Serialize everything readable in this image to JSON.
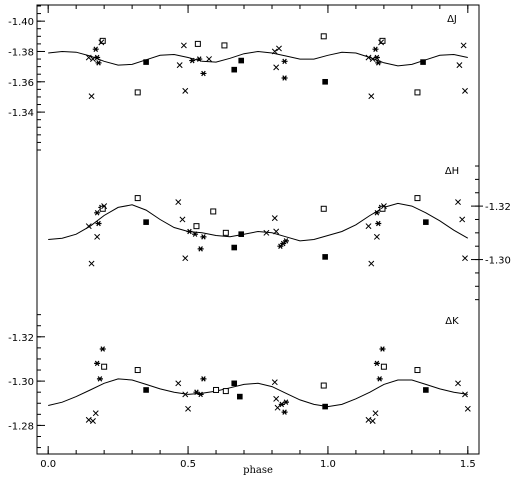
{
  "chart_data": {
    "type": "scatter",
    "xlabel": "phase",
    "x_ticks": [
      "0.0",
      "0.5",
      "1.0",
      "1.5"
    ],
    "xlim": [
      -0.04,
      1.54
    ],
    "marker_legend": {
      "cross": "x symbol",
      "star": "asterisk symbol",
      "open_square": "open square",
      "filled_square": "filled square"
    },
    "panels": [
      {
        "label": "ΔJ",
        "axis_side": "left",
        "ylim": [
          -1.41,
          -1.315
        ],
        "y_inverted": true,
        "y_ticks": [
          "-1.40",
          "-1.38",
          "-1.36",
          "-1.34"
        ],
        "y_tick_values": [
          -1.4,
          -1.38,
          -1.36,
          -1.34
        ],
        "model_curve": {
          "phase": [
            0.0,
            0.05,
            0.1,
            0.15,
            0.2,
            0.25,
            0.3,
            0.35,
            0.4,
            0.45,
            0.5,
            0.55,
            0.6,
            0.65,
            0.7,
            0.75,
            0.8,
            0.85,
            0.9,
            0.95,
            1.0,
            1.05,
            1.1,
            1.15,
            1.2,
            1.25,
            1.3,
            1.35,
            1.4,
            1.45,
            1.5
          ],
          "value": [
            -1.379,
            -1.38,
            -1.3795,
            -1.377,
            -1.3735,
            -1.371,
            -1.3715,
            -1.3745,
            -1.3775,
            -1.378,
            -1.376,
            -1.3735,
            -1.373,
            -1.3755,
            -1.3785,
            -1.38,
            -1.379,
            -1.377,
            -1.375,
            -1.375,
            -1.3775,
            -1.3795,
            -1.379,
            -1.376,
            -1.3725,
            -1.3705,
            -1.3715,
            -1.3745,
            -1.3775,
            -1.378,
            -1.376
          ]
        },
        "points": [
          {
            "marker": "cross",
            "x": 0.145,
            "y": -1.376
          },
          {
            "marker": "cross",
            "x": 0.16,
            "y": -1.375
          },
          {
            "marker": "cross",
            "x": 0.155,
            "y": -1.3505
          },
          {
            "marker": "star",
            "x": 0.175,
            "y": -1.376
          },
          {
            "marker": "star",
            "x": 0.17,
            "y": -1.3815
          },
          {
            "marker": "star",
            "x": 0.18,
            "y": -1.3725
          },
          {
            "marker": "open_square",
            "x": 0.195,
            "y": -1.387
          },
          {
            "marker": "cross",
            "x": 0.19,
            "y": -1.386
          },
          {
            "marker": "filled_square",
            "x": 0.35,
            "y": -1.373
          },
          {
            "marker": "open_square",
            "x": 0.32,
            "y": -1.353
          },
          {
            "marker": "cross",
            "x": 0.47,
            "y": -1.371
          },
          {
            "marker": "cross",
            "x": 0.485,
            "y": -1.384
          },
          {
            "marker": "cross",
            "x": 0.49,
            "y": -1.354
          },
          {
            "marker": "star",
            "x": 0.515,
            "y": -1.374
          },
          {
            "marker": "star",
            "x": 0.54,
            "y": -1.375
          },
          {
            "marker": "open_square",
            "x": 0.535,
            "y": -1.385
          },
          {
            "marker": "star",
            "x": 0.555,
            "y": -1.3655
          },
          {
            "marker": "cross",
            "x": 0.575,
            "y": -1.375
          },
          {
            "marker": "open_square",
            "x": 0.63,
            "y": -1.384
          },
          {
            "marker": "filled_square",
            "x": 0.665,
            "y": -1.368
          },
          {
            "marker": "filled_square",
            "x": 0.69,
            "y": -1.374
          },
          {
            "marker": "cross",
            "x": 0.81,
            "y": -1.38
          },
          {
            "marker": "cross",
            "x": 0.825,
            "y": -1.382
          },
          {
            "marker": "cross",
            "x": 0.815,
            "y": -1.3695
          },
          {
            "marker": "star",
            "x": 0.845,
            "y": -1.3735
          },
          {
            "marker": "star",
            "x": 0.845,
            "y": -1.3625
          },
          {
            "marker": "open_square",
            "x": 0.985,
            "y": -1.39
          },
          {
            "marker": "filled_square",
            "x": 0.99,
            "y": -1.36
          },
          {
            "marker": "cross",
            "x": 1.145,
            "y": -1.376
          },
          {
            "marker": "cross",
            "x": 1.16,
            "y": -1.375
          },
          {
            "marker": "cross",
            "x": 1.155,
            "y": -1.3505
          },
          {
            "marker": "star",
            "x": 1.175,
            "y": -1.376
          },
          {
            "marker": "star",
            "x": 1.17,
            "y": -1.3815
          },
          {
            "marker": "star",
            "x": 1.18,
            "y": -1.3725
          },
          {
            "marker": "open_square",
            "x": 1.195,
            "y": -1.387
          },
          {
            "marker": "cross",
            "x": 1.19,
            "y": -1.386
          },
          {
            "marker": "filled_square",
            "x": 1.34,
            "y": -1.373
          },
          {
            "marker": "open_square",
            "x": 1.32,
            "y": -1.353
          },
          {
            "marker": "cross",
            "x": 1.47,
            "y": -1.371
          },
          {
            "marker": "cross",
            "x": 1.485,
            "y": -1.384
          },
          {
            "marker": "cross",
            "x": 1.49,
            "y": -1.354
          }
        ]
      },
      {
        "label": "ΔH",
        "axis_side": "right",
        "ylim": [
          -1.338,
          -1.283
        ],
        "y_inverted": true,
        "y_ticks": [
          "-1.32",
          "-1.30"
        ],
        "y_tick_values": [
          -1.32,
          -1.3
        ],
        "model_curve": {
          "phase": [
            0.0,
            0.05,
            0.1,
            0.15,
            0.2,
            0.25,
            0.3,
            0.35,
            0.4,
            0.45,
            0.5,
            0.55,
            0.6,
            0.65,
            0.7,
            0.75,
            0.8,
            0.85,
            0.9,
            0.95,
            1.0,
            1.05,
            1.1,
            1.15,
            1.2,
            1.25,
            1.3,
            1.35,
            1.4,
            1.45,
            1.5
          ],
          "value": [
            -1.3075,
            -1.308,
            -1.3095,
            -1.3125,
            -1.3165,
            -1.3195,
            -1.3205,
            -1.3185,
            -1.315,
            -1.312,
            -1.3105,
            -1.31,
            -1.309,
            -1.3085,
            -1.3095,
            -1.3105,
            -1.31,
            -1.3085,
            -1.307,
            -1.3075,
            -1.309,
            -1.3105,
            -1.313,
            -1.3165,
            -1.3195,
            -1.321,
            -1.32,
            -1.3175,
            -1.3145,
            -1.311,
            -1.308
          ]
        },
        "points": [
          {
            "marker": "cross",
            "x": 0.145,
            "y": -1.3125
          },
          {
            "marker": "cross",
            "x": 0.155,
            "y": -1.2985
          },
          {
            "marker": "cross",
            "x": 0.175,
            "y": -1.3085
          },
          {
            "marker": "star",
            "x": 0.175,
            "y": -1.3175
          },
          {
            "marker": "star",
            "x": 0.19,
            "y": -1.3195
          },
          {
            "marker": "star",
            "x": 0.18,
            "y": -1.3135
          },
          {
            "marker": "open_square",
            "x": 0.195,
            "y": -1.319
          },
          {
            "marker": "cross",
            "x": 0.2,
            "y": -1.32
          },
          {
            "marker": "open_square",
            "x": 0.32,
            "y": -1.323
          },
          {
            "marker": "filled_square",
            "x": 0.35,
            "y": -1.314
          },
          {
            "marker": "cross",
            "x": 0.465,
            "y": -1.3215
          },
          {
            "marker": "cross",
            "x": 0.48,
            "y": -1.315
          },
          {
            "marker": "cross",
            "x": 0.49,
            "y": -1.3005
          },
          {
            "marker": "star",
            "x": 0.505,
            "y": -1.3105
          },
          {
            "marker": "star",
            "x": 0.525,
            "y": -1.3095
          },
          {
            "marker": "open_square",
            "x": 0.53,
            "y": -1.3125
          },
          {
            "marker": "star",
            "x": 0.545,
            "y": -1.304
          },
          {
            "marker": "star",
            "x": 0.555,
            "y": -1.3085
          },
          {
            "marker": "open_square",
            "x": 0.59,
            "y": -1.318
          },
          {
            "marker": "open_square",
            "x": 0.635,
            "y": -1.31
          },
          {
            "marker": "filled_square",
            "x": 0.665,
            "y": -1.3045
          },
          {
            "marker": "filled_square",
            "x": 0.69,
            "y": -1.3095
          },
          {
            "marker": "cross",
            "x": 0.78,
            "y": -1.31
          },
          {
            "marker": "cross",
            "x": 0.81,
            "y": -1.3155
          },
          {
            "marker": "cross",
            "x": 0.815,
            "y": -1.3105
          },
          {
            "marker": "star",
            "x": 0.83,
            "y": -1.305
          },
          {
            "marker": "star",
            "x": 0.84,
            "y": -1.306
          },
          {
            "marker": "star",
            "x": 0.85,
            "y": -1.307
          },
          {
            "marker": "open_square",
            "x": 0.985,
            "y": -1.319
          },
          {
            "marker": "filled_square",
            "x": 0.99,
            "y": -1.301
          },
          {
            "marker": "cross",
            "x": 1.145,
            "y": -1.3125
          },
          {
            "marker": "cross",
            "x": 1.155,
            "y": -1.2985
          },
          {
            "marker": "cross",
            "x": 1.175,
            "y": -1.3085
          },
          {
            "marker": "star",
            "x": 1.175,
            "y": -1.3175
          },
          {
            "marker": "star",
            "x": 1.19,
            "y": -1.3195
          },
          {
            "marker": "star",
            "x": 1.18,
            "y": -1.3135
          },
          {
            "marker": "open_square",
            "x": 1.195,
            "y": -1.319
          },
          {
            "marker": "cross",
            "x": 1.2,
            "y": -1.32
          },
          {
            "marker": "open_square",
            "x": 1.32,
            "y": -1.323
          },
          {
            "marker": "filled_square",
            "x": 1.35,
            "y": -1.314
          },
          {
            "marker": "cross",
            "x": 1.465,
            "y": -1.3215
          },
          {
            "marker": "cross",
            "x": 1.48,
            "y": -1.315
          },
          {
            "marker": "cross",
            "x": 1.49,
            "y": -1.3005
          }
        ]
      },
      {
        "label": "ΔK",
        "axis_side": "left",
        "ylim": [
          -1.333,
          -1.268
        ],
        "y_inverted": true,
        "y_ticks": [
          "-1.32",
          "-1.30",
          "-1.28"
        ],
        "y_tick_values": [
          -1.32,
          -1.3,
          -1.28
        ],
        "model_curve": {
          "phase": [
            0.0,
            0.05,
            0.1,
            0.15,
            0.2,
            0.25,
            0.3,
            0.35,
            0.4,
            0.45,
            0.5,
            0.55,
            0.6,
            0.65,
            0.7,
            0.75,
            0.8,
            0.85,
            0.9,
            0.95,
            1.0,
            1.05,
            1.1,
            1.15,
            1.2,
            1.25,
            1.3,
            1.35,
            1.4,
            1.45,
            1.5
          ],
          "value": [
            -1.289,
            -1.2905,
            -1.293,
            -1.296,
            -1.299,
            -1.301,
            -1.3005,
            -1.2985,
            -1.2965,
            -1.295,
            -1.294,
            -1.2945,
            -1.2955,
            -1.297,
            -1.2985,
            -1.299,
            -1.2975,
            -1.2945,
            -1.2915,
            -1.2895,
            -1.2885,
            -1.2895,
            -1.292,
            -1.295,
            -1.2985,
            -1.3005,
            -1.3005,
            -1.2985,
            -1.2965,
            -1.295,
            -1.294
          ]
        },
        "points": [
          {
            "marker": "cross",
            "x": 0.145,
            "y": -1.2825
          },
          {
            "marker": "cross",
            "x": 0.16,
            "y": -1.282
          },
          {
            "marker": "cross",
            "x": 0.17,
            "y": -1.2855
          },
          {
            "marker": "star",
            "x": 0.175,
            "y": -1.308
          },
          {
            "marker": "star",
            "x": 0.195,
            "y": -1.3145
          },
          {
            "marker": "star",
            "x": 0.185,
            "y": -1.301
          },
          {
            "marker": "open_square",
            "x": 0.2,
            "y": -1.3065
          },
          {
            "marker": "open_square",
            "x": 0.32,
            "y": -1.305
          },
          {
            "marker": "filled_square",
            "x": 0.35,
            "y": -1.296
          },
          {
            "marker": "cross",
            "x": 0.465,
            "y": -1.299
          },
          {
            "marker": "cross",
            "x": 0.49,
            "y": -1.294
          },
          {
            "marker": "cross",
            "x": 0.5,
            "y": -1.2875
          },
          {
            "marker": "star",
            "x": 0.53,
            "y": -1.295
          },
          {
            "marker": "star",
            "x": 0.545,
            "y": -1.294
          },
          {
            "marker": "star",
            "x": 0.555,
            "y": -1.301
          },
          {
            "marker": "open_square",
            "x": 0.6,
            "y": -1.296
          },
          {
            "marker": "open_square",
            "x": 0.635,
            "y": -1.2955
          },
          {
            "marker": "filled_square",
            "x": 0.665,
            "y": -1.299
          },
          {
            "marker": "filled_square",
            "x": 0.685,
            "y": -1.293
          },
          {
            "marker": "cross",
            "x": 0.81,
            "y": -1.2995
          },
          {
            "marker": "cross",
            "x": 0.815,
            "y": -1.292
          },
          {
            "marker": "cross",
            "x": 0.82,
            "y": -1.288
          },
          {
            "marker": "star",
            "x": 0.835,
            "y": -1.2895
          },
          {
            "marker": "star",
            "x": 0.85,
            "y": -1.2905
          },
          {
            "marker": "star",
            "x": 0.845,
            "y": -1.286
          },
          {
            "marker": "open_square",
            "x": 0.985,
            "y": -1.298
          },
          {
            "marker": "filled_square",
            "x": 0.99,
            "y": -1.2885
          },
          {
            "marker": "cross",
            "x": 1.145,
            "y": -1.2825
          },
          {
            "marker": "cross",
            "x": 1.16,
            "y": -1.282
          },
          {
            "marker": "cross",
            "x": 1.17,
            "y": -1.2855
          },
          {
            "marker": "star",
            "x": 1.175,
            "y": -1.308
          },
          {
            "marker": "star",
            "x": 1.195,
            "y": -1.3145
          },
          {
            "marker": "star",
            "x": 1.185,
            "y": -1.301
          },
          {
            "marker": "open_square",
            "x": 1.2,
            "y": -1.3065
          },
          {
            "marker": "open_square",
            "x": 1.32,
            "y": -1.305
          },
          {
            "marker": "filled_square",
            "x": 1.35,
            "y": -1.296
          },
          {
            "marker": "cross",
            "x": 1.465,
            "y": -1.299
          },
          {
            "marker": "cross",
            "x": 1.49,
            "y": -1.294
          },
          {
            "marker": "cross",
            "x": 1.5,
            "y": -1.2875
          }
        ]
      }
    ]
  }
}
